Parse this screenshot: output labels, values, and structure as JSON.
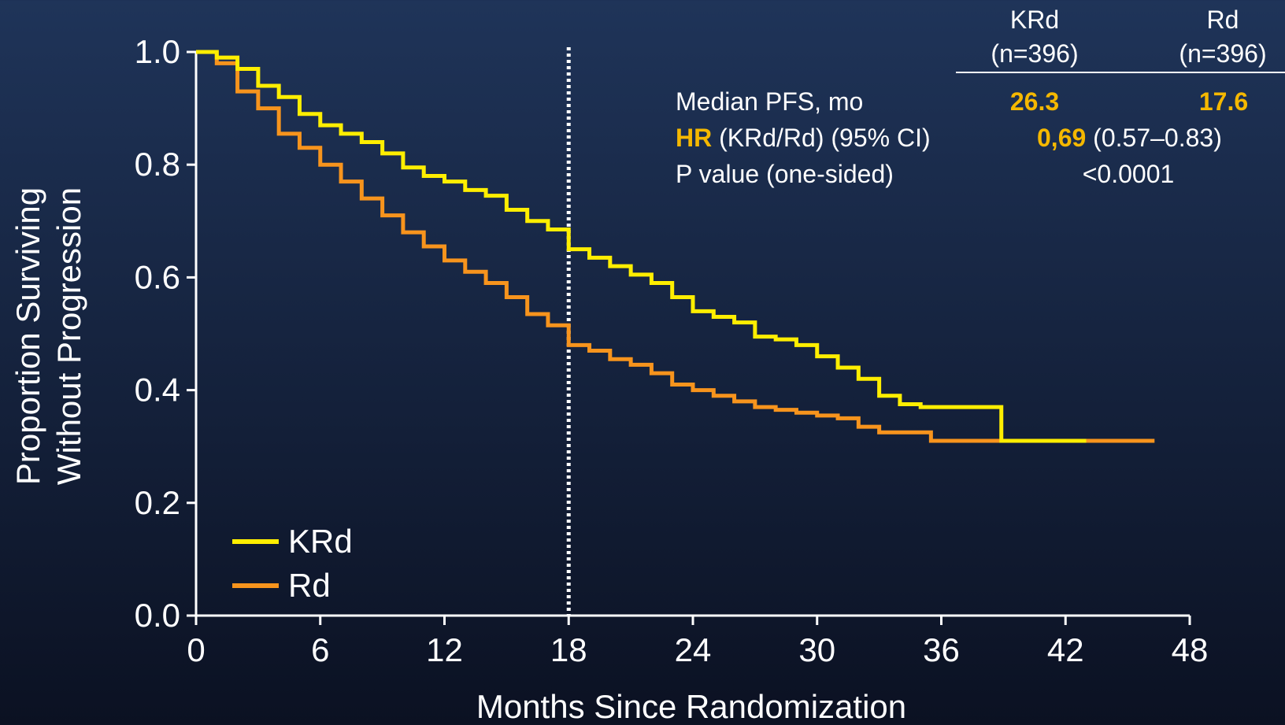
{
  "chart_data": {
    "type": "step",
    "xlabel": "Months Since Randomization",
    "ylabel": [
      "Proportion Surviving",
      "Without Progression"
    ],
    "xlim": [
      0,
      48
    ],
    "xticks": [
      0,
      6,
      12,
      18,
      24,
      30,
      36,
      42,
      48
    ],
    "ylim": [
      0,
      1
    ],
    "yticks": [
      {
        "value": 0,
        "label": "0.0"
      },
      0.2,
      0.4,
      0.6,
      0.8,
      {
        "value": 1,
        "label": "1.0"
      }
    ],
    "reference_x": 18,
    "series": [
      {
        "name": "KRd",
        "color": "#ffee00",
        "x": [
          0,
          1,
          2,
          3,
          4,
          5,
          6,
          7,
          8,
          9,
          10,
          11,
          12,
          13,
          14,
          15,
          16,
          17,
          18,
          19,
          20,
          21,
          22,
          23,
          24,
          25,
          26,
          27,
          28,
          29,
          30,
          31,
          32,
          33,
          34,
          35,
          38.9,
          43
        ],
        "values": [
          1.0,
          0.99,
          0.97,
          0.94,
          0.92,
          0.89,
          0.87,
          0.855,
          0.84,
          0.82,
          0.795,
          0.78,
          0.77,
          0.755,
          0.745,
          0.72,
          0.7,
          0.685,
          0.65,
          0.635,
          0.62,
          0.605,
          0.59,
          0.565,
          0.54,
          0.53,
          0.52,
          0.495,
          0.49,
          0.48,
          0.46,
          0.44,
          0.42,
          0.39,
          0.375,
          0.37,
          0.31,
          0.31
        ]
      },
      {
        "name": "Rd",
        "color": "#f7941d",
        "x": [
          0,
          1,
          2,
          3,
          4,
          5,
          6,
          7,
          8,
          9,
          10,
          11,
          12,
          13,
          14,
          15,
          16,
          17,
          18,
          19,
          20,
          21,
          22,
          23,
          24,
          25,
          26,
          27,
          28,
          29,
          30,
          31,
          32,
          33,
          35.5,
          46.3
        ],
        "values": [
          1.0,
          0.98,
          0.93,
          0.9,
          0.855,
          0.83,
          0.8,
          0.77,
          0.74,
          0.71,
          0.68,
          0.655,
          0.63,
          0.61,
          0.59,
          0.565,
          0.535,
          0.515,
          0.48,
          0.47,
          0.455,
          0.445,
          0.43,
          0.41,
          0.4,
          0.39,
          0.38,
          0.37,
          0.365,
          0.36,
          0.355,
          0.35,
          0.335,
          0.325,
          0.31,
          0.31
        ]
      }
    ]
  },
  "table": {
    "columns": [
      [
        "KRd",
        "(n=396)"
      ],
      [
        "Rd",
        "(n=396)"
      ]
    ],
    "rows": [
      {
        "label": "Median PFS, mo",
        "krd": "26.3",
        "rd": "17.6"
      },
      {
        "label_hl": "HR",
        "label": " (KRd/Rd) (95% CI)",
        "value_hl": "0,69",
        "value": " (0.57–0.83)"
      },
      {
        "label": "P value (one-sided)",
        "value": "<0.0001"
      }
    ]
  }
}
